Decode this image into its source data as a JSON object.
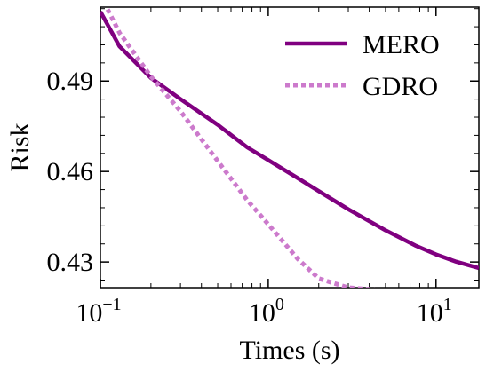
{
  "chart_data": {
    "type": "line",
    "xlabel": "Times (s)",
    "ylabel": "Risk",
    "xscale": "log",
    "xlim": [
      0.1,
      18
    ],
    "ylim": [
      0.4215,
      0.5145
    ],
    "x_ticks": [
      {
        "value": 0.1,
        "base": "10",
        "exp": "−1"
      },
      {
        "value": 1,
        "base": "10",
        "exp": "0"
      },
      {
        "value": 10,
        "base": "10",
        "exp": "1"
      }
    ],
    "y_ticks": [
      {
        "value": 0.43,
        "label": "0.43"
      },
      {
        "value": 0.46,
        "label": "0.46"
      },
      {
        "value": 0.49,
        "label": "0.49"
      }
    ],
    "grid": false,
    "legend_position": "top-right",
    "series": [
      {
        "name": "MERO",
        "color": "#800080",
        "style": "solid",
        "x": [
          0.1,
          0.13,
          0.2,
          0.3,
          0.5,
          0.75,
          1.0,
          1.5,
          2.0,
          3.0,
          5.0,
          7.5,
          10,
          13,
          18
        ],
        "y": [
          0.513,
          0.5015,
          0.491,
          0.484,
          0.4755,
          0.468,
          0.4638,
          0.4578,
          0.4535,
          0.4475,
          0.4405,
          0.4355,
          0.4325,
          0.4302,
          0.428
        ]
      },
      {
        "name": "GDRO",
        "color": "#CC7ACC",
        "style": "dotted",
        "x": [
          0.1,
          0.13,
          0.2,
          0.3,
          0.5,
          0.75,
          1.0,
          1.5,
          2.0,
          3.0,
          5.0,
          7.5,
          10,
          18
        ],
        "y": [
          0.5185,
          0.506,
          0.4915,
          0.48,
          0.4635,
          0.4505,
          0.4425,
          0.431,
          0.4245,
          0.4215,
          0.4205,
          0.4202,
          0.42,
          0.42
        ]
      }
    ]
  }
}
